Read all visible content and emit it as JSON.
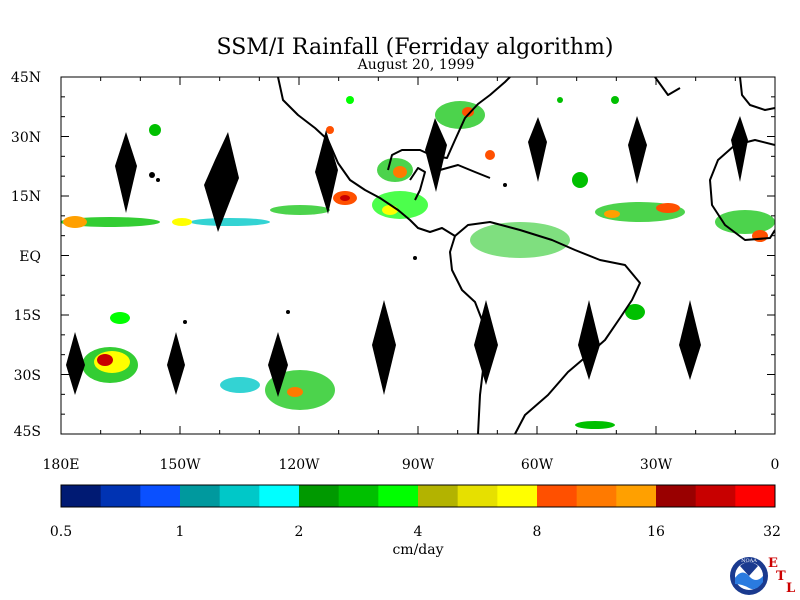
{
  "title": "SSM/I Rainfall (Ferriday algorithm)",
  "date": "August 20, 1999",
  "lat_labels": [
    "45N",
    "30N",
    "15N",
    "EQ",
    "15S",
    "30S",
    "45S"
  ],
  "lon_labels": [
    "180E",
    "150W",
    "120W",
    "90W",
    "60W",
    "30W",
    "0"
  ],
  "colorbar": {
    "unit": "cm/day",
    "tick_labels": [
      "0.5",
      "1",
      "2",
      "4",
      "8",
      "16",
      "32"
    ],
    "colors": [
      "#001a73",
      "#0033b3",
      "#0a50ff",
      "#00999e",
      "#00c8c8",
      "#00ffff",
      "#009900",
      "#00c000",
      "#00ff00",
      "#b3b300",
      "#e6e000",
      "#ffff00",
      "#ff5000",
      "#ff7a00",
      "#ffa000",
      "#990000",
      "#c80000",
      "#ff0000"
    ]
  },
  "logo": {
    "org": "NOAA",
    "lab_letters": [
      "E",
      "T",
      "L"
    ]
  }
}
